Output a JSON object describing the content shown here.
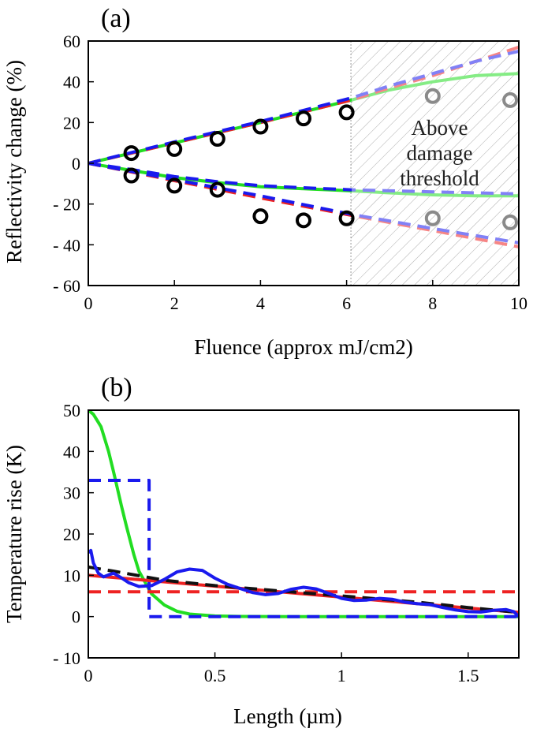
{
  "chart_data": [
    {
      "panel": "(a)",
      "type": "line",
      "xlabel": "Fluence (approx mJ/cm2)",
      "ylabel": "Reflectivity change (%)",
      "xlim": [
        0,
        10
      ],
      "ylim": [
        -60,
        60
      ],
      "xticks": [
        0,
        2,
        4,
        6,
        8,
        10
      ],
      "yticks": [
        60,
        40,
        20,
        0,
        -20,
        -40,
        -60
      ],
      "ytick_labels": [
        "60",
        "40",
        "20",
        "0",
        "- 20",
        "- 40",
        "- 60"
      ],
      "hatched_region": {
        "x_from": 6.1,
        "x_to": 10,
        "label_lines": [
          "Above",
          "damage",
          "threshold"
        ]
      },
      "series": [
        {
          "name": "upper-green",
          "color": "#22dd22",
          "style": "solid",
          "x": [
            0,
            2,
            4,
            6.1,
            7,
            8,
            9,
            10
          ],
          "y": [
            0,
            10,
            20,
            31,
            36,
            40,
            43,
            44
          ]
        },
        {
          "name": "upper-red",
          "color": "#ee2222",
          "style": "dashed",
          "x": [
            0,
            2,
            4,
            6.1,
            7,
            8,
            9,
            10
          ],
          "y": [
            0,
            10,
            20,
            31,
            37,
            43,
            50,
            57
          ]
        },
        {
          "name": "upper-blue",
          "color": "#1a1aee",
          "style": "dashed",
          "x": [
            0,
            2,
            4,
            6.1,
            7,
            8,
            9,
            10
          ],
          "y": [
            0,
            10.5,
            20.5,
            32,
            38,
            44,
            50,
            55
          ]
        },
        {
          "name": "lower-green",
          "color": "#22dd22",
          "style": "solid",
          "x": [
            0,
            1,
            2,
            3,
            4,
            5,
            6.1,
            7,
            8,
            9,
            10
          ],
          "y": [
            0,
            -3.5,
            -7,
            -9.5,
            -11.5,
            -12.5,
            -13.5,
            -14.5,
            -15.5,
            -16,
            -16
          ]
        },
        {
          "name": "lower-blue-short",
          "color": "#1a1aee",
          "style": "dashed",
          "x": [
            0,
            1,
            2,
            3,
            4,
            5,
            6.1,
            7,
            8,
            9,
            10
          ],
          "y": [
            0,
            -3,
            -6.5,
            -9,
            -11,
            -12,
            -13,
            -13.5,
            -14,
            -14.5,
            -15
          ]
        },
        {
          "name": "lower-red",
          "color": "#ee2222",
          "style": "dashed",
          "x": [
            0,
            2,
            4,
            6.1,
            8,
            10
          ],
          "y": [
            0,
            -8.5,
            -17,
            -25.5,
            -33,
            -41
          ]
        },
        {
          "name": "lower-blue-long",
          "color": "#1a1aee",
          "style": "dashed",
          "x": [
            0,
            2,
            4,
            6.1,
            8,
            10
          ],
          "y": [
            0,
            -8,
            -16,
            -25,
            -32,
            -39
          ]
        }
      ],
      "markers": [
        {
          "name": "measured-below-threshold",
          "color": "#000000",
          "points": [
            [
              1,
              5
            ],
            [
              2,
              7
            ],
            [
              3,
              12
            ],
            [
              4,
              18
            ],
            [
              5,
              22
            ],
            [
              6,
              25
            ],
            [
              1,
              -6
            ],
            [
              2,
              -11
            ],
            [
              3,
              -13
            ],
            [
              4,
              -26
            ],
            [
              5,
              -28
            ],
            [
              6,
              -27
            ]
          ]
        },
        {
          "name": "measured-above-threshold",
          "color": "#8a8a8a",
          "points": [
            [
              8,
              33
            ],
            [
              9.8,
              31
            ],
            [
              8,
              -27
            ],
            [
              9.8,
              -29
            ]
          ]
        }
      ]
    },
    {
      "panel": "(b)",
      "type": "line",
      "xlabel": "Length (µm)",
      "ylabel": "Temperature rise (K)",
      "xlim": [
        0,
        1.7
      ],
      "ylim": [
        -10,
        50
      ],
      "xticks": [
        0,
        0.5,
        1,
        1.5
      ],
      "xtick_labels": [
        "0",
        "0.5",
        "1",
        "1.5"
      ],
      "yticks": [
        50,
        40,
        30,
        20,
        10,
        0,
        -10
      ],
      "ytick_labels": [
        "50",
        "40",
        "30",
        "20",
        "10",
        "0",
        "- 10"
      ],
      "series": [
        {
          "name": "green-exponential",
          "color": "#22dd22",
          "style": "solid",
          "x": [
            0,
            0.02,
            0.05,
            0.08,
            0.1,
            0.13,
            0.15,
            0.18,
            0.2,
            0.25,
            0.3,
            0.35,
            0.4,
            0.5,
            0.6,
            0.8,
            1.0,
            1.3,
            1.7
          ],
          "y": [
            50,
            49,
            46,
            40,
            35,
            27,
            22,
            15,
            11,
            5.5,
            2.8,
            1.3,
            0.6,
            0.15,
            0.03,
            0,
            0,
            0,
            0
          ]
        },
        {
          "name": "blue-dashed-step",
          "color": "#1a1aee",
          "style": "dashed",
          "x": [
            0,
            0.24,
            0.24,
            1.7
          ],
          "y": [
            33,
            33,
            0,
            0
          ]
        },
        {
          "name": "red-dashed-flat",
          "color": "#ee2222",
          "style": "dashed",
          "x": [
            0,
            1.7
          ],
          "y": [
            6,
            6
          ]
        },
        {
          "name": "red-solid-linear",
          "color": "#ee2222",
          "style": "solid",
          "x": [
            0,
            1.7
          ],
          "y": [
            10,
            1
          ]
        },
        {
          "name": "black-dashed",
          "color": "#111111",
          "style": "dashed",
          "x": [
            0,
            0.1,
            0.3,
            0.5,
            0.8,
            1.0,
            1.3,
            1.5,
            1.7
          ],
          "y": [
            12,
            11,
            8.8,
            7.5,
            6,
            5,
            3.5,
            2.2,
            1
          ]
        },
        {
          "name": "blue-solid-oscillating",
          "color": "#1a1aee",
          "style": "solid",
          "x": [
            0,
            0.01,
            0.02,
            0.04,
            0.06,
            0.08,
            0.1,
            0.13,
            0.16,
            0.2,
            0.25,
            0.3,
            0.35,
            0.4,
            0.45,
            0.5,
            0.55,
            0.6,
            0.65,
            0.7,
            0.75,
            0.8,
            0.85,
            0.9,
            0.95,
            1.0,
            1.05,
            1.1,
            1.15,
            1.2,
            1.25,
            1.3,
            1.35,
            1.4,
            1.45,
            1.5,
            1.55,
            1.6,
            1.65,
            1.68,
            1.7
          ],
          "y": [
            15.5,
            16,
            13,
            10.5,
            9.6,
            10.1,
            10.5,
            9.4,
            8.2,
            7.3,
            7.5,
            9,
            10.8,
            11.5,
            11.2,
            9.3,
            7.8,
            6.8,
            5.8,
            5.3,
            5.6,
            6.6,
            7.1,
            6.7,
            5.6,
            4.4,
            3.9,
            4,
            4.4,
            4.2,
            3.5,
            3.1,
            2.9,
            2.2,
            1.6,
            1.2,
            1.1,
            1.5,
            1.7,
            1.2,
            0
          ]
        }
      ]
    }
  ]
}
